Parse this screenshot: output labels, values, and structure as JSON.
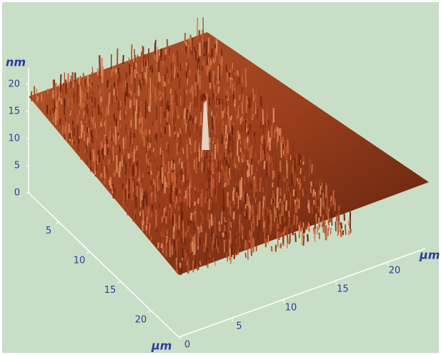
{
  "z_axis": {
    "unit": "nm",
    "ticks": [
      0,
      5,
      10,
      15,
      20
    ]
  },
  "y_axis": {
    "unit": "μm",
    "ticks": [
      5,
      10,
      15,
      20
    ]
  },
  "x_axis": {
    "unit": "μm",
    "ticks": [
      0,
      5,
      10,
      15,
      20
    ]
  }
}
